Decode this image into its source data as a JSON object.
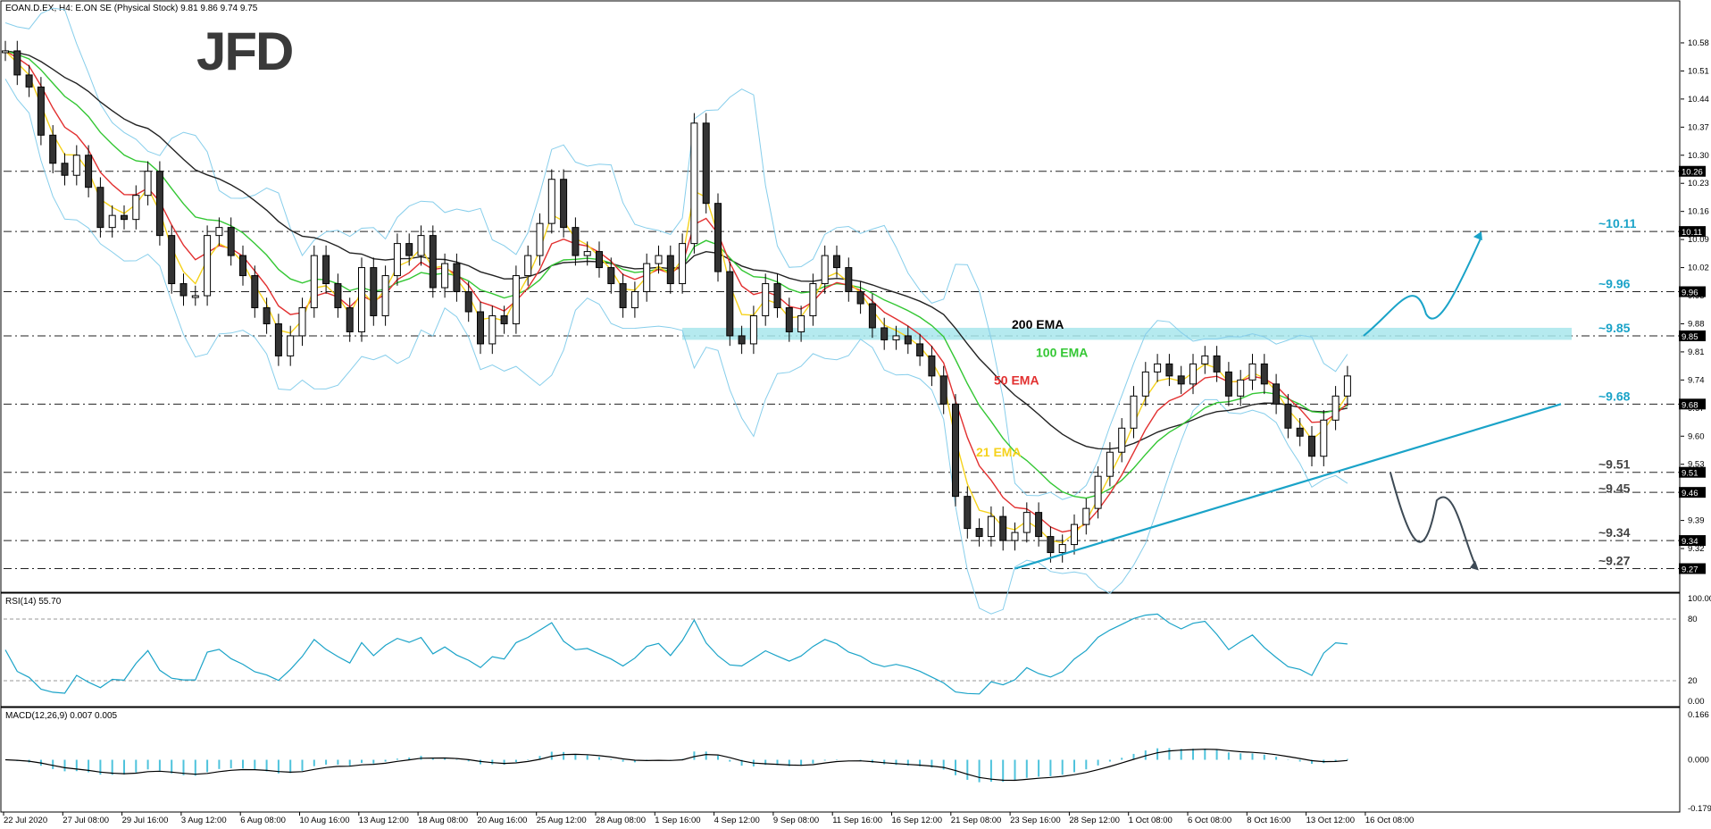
{
  "header": {
    "symbol_line": "EOAN.D.EX, H4:  E.ON SE (Physical Stock)  9.81 9.86 9.74 9.75"
  },
  "logo": {
    "text": "JFD"
  },
  "colors": {
    "ema21": "#f5d21c",
    "ema50": "#e23030",
    "ema100": "#34c734",
    "ema200": "#222222",
    "bollinger": "#87ceeb",
    "accent": "#1aa3c8",
    "zone": "#a8e6ec",
    "bull": "#ffffff",
    "bear": "#333333"
  },
  "chart_data": [
    {
      "type": "candlestick",
      "title": "EOAN.D.EX, H4:  E.ON SE (Physical Stock)",
      "ylim": [
        9.24,
        10.62
      ],
      "y_ticks": [
        "10.58",
        "10.51",
        "10.44",
        "10.37",
        "10.30",
        "10.23",
        "10.16",
        "10.09",
        "10.02",
        "9.95",
        "9.88",
        "9.81",
        "9.74",
        "9.67",
        "9.60",
        "9.53",
        "9.46",
        "9.39",
        "9.32"
      ],
      "x_ticks": [
        "22 Jul 2020",
        "27 Jul 08:00",
        "29 Jul 16:00",
        "3 Aug 12:00",
        "6 Aug 08:00",
        "10 Aug 16:00",
        "13 Aug 12:00",
        "18 Aug 08:00",
        "20 Aug 16:00",
        "25 Aug 12:00",
        "28 Aug 08:00",
        "1 Sep 16:00",
        "4 Sep 12:00",
        "9 Sep 08:00",
        "11 Sep 16:00",
        "16 Sep 12:00",
        "21 Sep 08:00",
        "23 Sep 16:00",
        "28 Sep 12:00",
        "1 Oct 08:00",
        "6 Oct 08:00",
        "8 Oct 16:00",
        "13 Oct 12:00",
        "16 Oct 08:00"
      ],
      "close": [
        10.56,
        10.5,
        10.47,
        10.35,
        10.28,
        10.25,
        10.3,
        10.22,
        10.12,
        10.15,
        10.14,
        10.2,
        10.26,
        10.1,
        9.98,
        9.95,
        9.95,
        10.1,
        10.12,
        10.05,
        10.0,
        9.92,
        9.88,
        9.8,
        9.85,
        9.92,
        10.05,
        9.98,
        9.92,
        9.86,
        10.02,
        9.9,
        10.0,
        10.08,
        10.05,
        10.1,
        9.97,
        10.03,
        9.96,
        9.91,
        9.83,
        9.9,
        9.88,
        10.0,
        10.05,
        10.13,
        10.24,
        10.12,
        10.05,
        10.06,
        10.02,
        9.98,
        9.92,
        9.96,
        10.03,
        10.05,
        9.98,
        10.08,
        10.38,
        10.18,
        10.01,
        9.85,
        9.83,
        9.9,
        9.98,
        9.92,
        9.86,
        9.9,
        9.98,
        10.05,
        10.02,
        9.96,
        9.93,
        9.87,
        9.84,
        9.85,
        9.83,
        9.8,
        9.75,
        9.68,
        9.45,
        9.37,
        9.35,
        9.4,
        9.34,
        9.36,
        9.41,
        9.35,
        9.31,
        9.33,
        9.38,
        9.42,
        9.5,
        9.56,
        9.62,
        9.7,
        9.76,
        9.78,
        9.75,
        9.73,
        9.78,
        9.8,
        9.76,
        9.7,
        9.74,
        9.78,
        9.73,
        9.68,
        9.62,
        9.6,
        9.55,
        9.64,
        9.7,
        9.75
      ],
      "levels": [
        "~10.11",
        "~9.96",
        "~9.85",
        "~9.68",
        "~9.51",
        "~9.45",
        "~9.34",
        "~9.27"
      ],
      "level_values": [
        10.11,
        9.96,
        9.85,
        9.68,
        9.51,
        9.45,
        9.34,
        9.27
      ],
      "price_tags": [
        "10.26",
        "10.11",
        "9.96",
        "9.85",
        "9.68",
        "9.51",
        "9.46",
        "9.34",
        "9.27"
      ],
      "price_tag_values": [
        10.26,
        10.11,
        9.96,
        9.85,
        9.68,
        9.51,
        9.46,
        9.34,
        9.27
      ],
      "ema_labels": [
        "200 EMA",
        "100 EMA",
        "50 EMA",
        "21 EMA"
      ],
      "resistance_zone": [
        9.84,
        9.87
      ],
      "trendline": {
        "from_price": 9.27,
        "to_price": 9.68
      }
    },
    {
      "type": "line",
      "title": "RSI(14) 55.70",
      "ylim": [
        0,
        100
      ],
      "y_ticks": [
        "100.00",
        "80",
        "20",
        "0.00"
      ],
      "guide_levels": [
        80,
        20
      ],
      "last_value": 55.7
    },
    {
      "type": "bar",
      "title": "MACD(12,26,9) 0.007 0.005",
      "ylim": [
        -0.179,
        0.166
      ],
      "y_ticks": [
        "0.166",
        "0.000",
        "-0.179"
      ]
    }
  ]
}
